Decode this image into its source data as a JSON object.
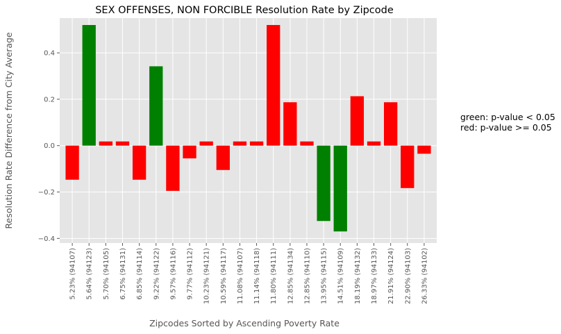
{
  "chart_data": {
    "type": "bar",
    "title": "SEX OFFENSES, NON FORCIBLE Resolution Rate by Zipcode",
    "xlabel": "Zipcodes Sorted by Ascending Poverty Rate",
    "ylabel": "Resolution Rate Difference from City Average",
    "ylim": [
      -0.42,
      0.55
    ],
    "yticks": [
      -0.4,
      -0.2,
      0.0,
      0.2,
      0.4
    ],
    "ytick_labels": [
      "−0.4",
      "−0.2",
      "0.0",
      "0.2",
      "0.4"
    ],
    "grid": true,
    "categories": [
      "5.23%  (94107)",
      "5.64%  (94123)",
      "5.70%  (94105)",
      "6.75%  (94131)",
      "6.85%  (94114)",
      "9.22%  (94122)",
      "9.57%  (94116)",
      "9.77%  (94112)",
      "10.23%  (94121)",
      "10.59%  (94117)",
      "11.08%  (94107)",
      "11.14%  (94118)",
      "11.80%  (94111)",
      "12.85%  (94134)",
      "12.85%  (94110)",
      "13.95%  (94115)",
      "14.51%  (94109)",
      "18.19%  (94132)",
      "18.97%  (94133)",
      "21.91%  (94124)",
      "22.90%  (94103)",
      "26.33%  (94102)"
    ],
    "values": [
      -0.147,
      0.52,
      0.018,
      0.018,
      -0.147,
      0.342,
      -0.195,
      -0.055,
      0.018,
      -0.105,
      0.018,
      0.018,
      0.52,
      0.187,
      0.018,
      -0.325,
      -0.37,
      0.213,
      0.018,
      0.187,
      -0.183,
      -0.035
    ],
    "significance": [
      "red",
      "green",
      "red",
      "red",
      "red",
      "green",
      "red",
      "red",
      "red",
      "red",
      "red",
      "red",
      "red",
      "red",
      "red",
      "green",
      "green",
      "red",
      "red",
      "red",
      "red",
      "red"
    ]
  },
  "colors": {
    "green": "#008000",
    "red": "#ff0000",
    "plot_background": "#e5e5e5",
    "grid": "#ffffff",
    "text": "#555555"
  },
  "legend_note": {
    "line1": "green: p-value < 0.05",
    "line2": "red: p-value >= 0.05"
  }
}
